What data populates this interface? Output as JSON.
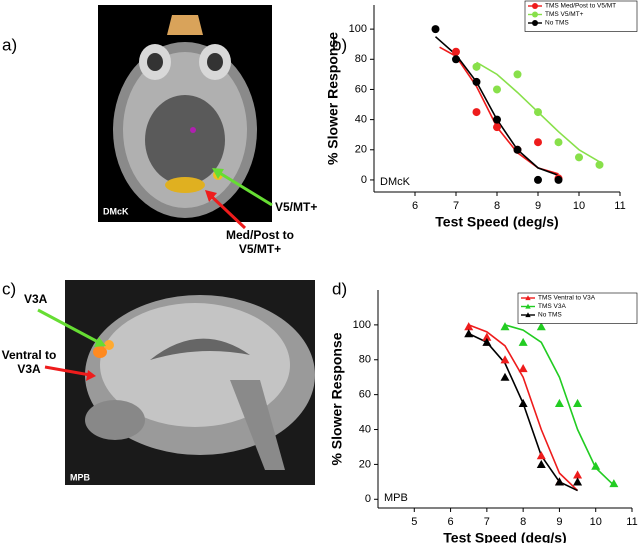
{
  "figure": {
    "panel_labels": [
      "a)",
      "b)",
      "c)",
      "d)"
    ],
    "image_a": {
      "subject": "DMcK",
      "arrow_labels": [
        "V5/MT+",
        "Med/Post to V5/MT+"
      ]
    },
    "image_c": {
      "subject": "MPB",
      "arrow_labels": [
        "V3A",
        "Ventral to V3A"
      ]
    }
  },
  "chart_data": [
    {
      "type": "scatter",
      "marker": "circle",
      "note": "DMcK",
      "xlabel": "Test Speed (deg/s)",
      "ylabel": "% Slower Response",
      "xlim": [
        5,
        11
      ],
      "xticks": [
        6,
        7,
        8,
        9,
        10,
        11
      ],
      "ylim": [
        -8,
        116
      ],
      "yticks": [
        0,
        20,
        40,
        60,
        80,
        100
      ],
      "legend": "top-right",
      "series": [
        {
          "name": "TMS Med/Post to V5/MT",
          "color": "#ee1c1c",
          "x": [
            7,
            7.5,
            8,
            8.5,
            9,
            9.5
          ],
          "values": [
            85,
            45,
            35,
            20,
            25,
            1
          ],
          "fit_x": [
            6.6,
            7,
            7.5,
            8,
            8.5,
            9,
            9.5
          ],
          "fit_values": [
            88,
            82,
            62,
            35,
            18,
            8,
            4
          ]
        },
        {
          "name": "TMS V5/MT+",
          "color": "#88e04a",
          "x": [
            7.5,
            8,
            8.5,
            9,
            9.5,
            10,
            10.5
          ],
          "values": [
            75,
            60,
            70,
            45,
            25,
            15,
            10
          ],
          "fit_x": [
            7.5,
            8,
            8.5,
            9,
            9.5,
            10,
            10.5
          ],
          "fit_values": [
            78,
            70,
            58,
            45,
            32,
            20,
            12
          ]
        },
        {
          "name": "No TMS",
          "color": "#000000",
          "x": [
            6.5,
            7,
            7.5,
            8,
            8.5,
            9,
            9.5
          ],
          "values": [
            100,
            80,
            65,
            40,
            20,
            0,
            0
          ],
          "fit_x": [
            6.5,
            7,
            7.5,
            8,
            8.5,
            9,
            9.5
          ],
          "fit_values": [
            95,
            83,
            65,
            40,
            20,
            8,
            3
          ]
        }
      ]
    },
    {
      "type": "scatter",
      "marker": "triangle",
      "note": "MPB",
      "xlabel": "Test Speed (deg/s)",
      "ylabel": "% Slower Response",
      "xlim": [
        4,
        11
      ],
      "xticks": [
        5,
        6,
        7,
        8,
        9,
        10,
        11
      ],
      "ylim": [
        -5,
        120
      ],
      "yticks": [
        0,
        20,
        40,
        60,
        80,
        100
      ],
      "legend": "top-right",
      "series": [
        {
          "name": "TMS Ventral to V3A",
          "color": "#ee1c1c",
          "x": [
            6.5,
            7,
            7.5,
            8,
            8.5,
            9,
            9.5
          ],
          "values": [
            99,
            93,
            80,
            75,
            25,
            10,
            14
          ],
          "fit_x": [
            6.5,
            7,
            7.5,
            8,
            8.5,
            9,
            9.5
          ],
          "fit_values": [
            100,
            96,
            88,
            70,
            40,
            15,
            5
          ]
        },
        {
          "name": "TMS V3A",
          "color": "#22cc22",
          "x": [
            7.5,
            8,
            8.5,
            9,
            9.5,
            10,
            10.5
          ],
          "values": [
            99,
            90,
            99,
            55,
            55,
            19,
            9
          ],
          "fit_x": [
            7.5,
            8,
            8.5,
            9,
            9.5,
            10,
            10.5
          ],
          "fit_values": [
            100,
            97,
            90,
            70,
            40,
            18,
            8
          ]
        },
        {
          "name": "No TMS",
          "color": "#000000",
          "x": [
            6.5,
            7,
            7.5,
            8,
            8.5,
            9,
            9.5
          ],
          "values": [
            95,
            90,
            70,
            55,
            20,
            10,
            10
          ],
          "fit_x": [
            6.5,
            7,
            7.5,
            8,
            8.5,
            9,
            9.5
          ],
          "fit_values": [
            95,
            90,
            78,
            55,
            25,
            10,
            5
          ]
        }
      ]
    }
  ]
}
